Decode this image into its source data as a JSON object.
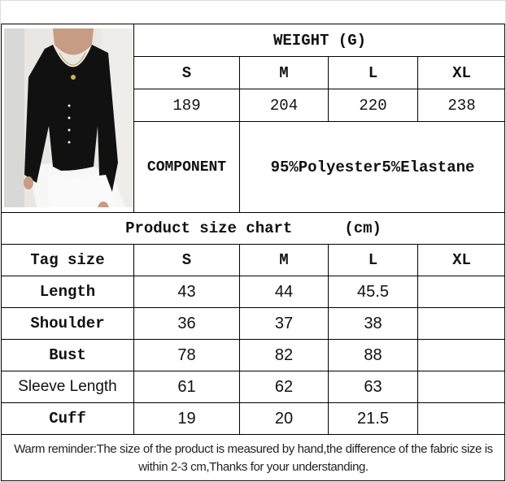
{
  "weight": {
    "title": "WEIGHT (G)",
    "sizes": [
      "S",
      "M",
      "L",
      "XL"
    ],
    "values": [
      "189",
      "204",
      "220",
      "238"
    ]
  },
  "component": {
    "label": "COMPONENT",
    "value": "95%Polyester5%Elastane"
  },
  "size_chart": {
    "title": "Product size chart",
    "unit": "(cm)",
    "header": [
      "Tag size",
      "S",
      "M",
      "L",
      "XL"
    ],
    "rows": [
      {
        "label": "Length",
        "values": [
          "43",
          "44",
          "45.5",
          ""
        ]
      },
      {
        "label": "Shoulder",
        "values": [
          "36",
          "37",
          "38",
          ""
        ]
      },
      {
        "label": "Bust",
        "values": [
          "78",
          "82",
          "88",
          ""
        ]
      },
      {
        "label": "Sleeve Length",
        "values": [
          "61",
          "62",
          "63",
          ""
        ]
      },
      {
        "label": "Cuff",
        "values": [
          "19",
          "20",
          "21.5",
          ""
        ]
      }
    ]
  },
  "reminder": "Warm reminder:The size of the product is measured by hand,the difference of the fabric size is within 2-3 cm,Thanks for your understanding."
}
